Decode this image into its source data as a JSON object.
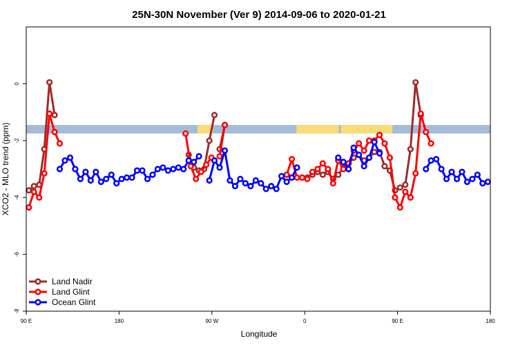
{
  "chart_data": {
    "type": "line",
    "title": "25N-30N November (Ver 9)   2014-09-06 to 2020-01-21",
    "xlabel": "Longitude",
    "ylabel": "XCO2 - MLO trend (ppm)",
    "xlim": [
      0,
      450
    ],
    "ylim": [
      -8,
      2
    ],
    "x_ticks": [
      {
        "value": 0,
        "label": "90 E"
      },
      {
        "value": 90,
        "label": "180"
      },
      {
        "value": 180,
        "label": "90 W"
      },
      {
        "value": 270,
        "label": "0"
      },
      {
        "value": 360,
        "label": "90 E"
      },
      {
        "value": 450,
        "label": "180"
      }
    ],
    "y_ticks": [
      {
        "value": 0,
        "label": "0"
      },
      {
        "value": -2,
        "label": "-2"
      },
      {
        "value": -4,
        "label": "-4"
      },
      {
        "value": -6,
        "label": "-6"
      },
      {
        "value": -8,
        "label": "-8"
      }
    ],
    "grid": false,
    "legend_position": "bottom-left",
    "land_mask_band": {
      "y_range": [
        -1.75,
        -1.45
      ],
      "ocean_color": "#a4bcd8",
      "land_color": "#f8dc78",
      "land_segments": [
        [
          166,
          181
        ],
        [
          262,
          303
        ],
        [
          305,
          355
        ]
      ]
    },
    "series": [
      {
        "name": "Land Nadir",
        "color": "#a02a2a",
        "segments": [
          [
            [
              2.5,
              -3.75
            ],
            [
              7.5,
              -3.6
            ],
            [
              12.5,
              -3.55
            ],
            [
              17.5,
              -2.3
            ],
            [
              22.5,
              0.05
            ],
            [
              27.5,
              -1.1
            ]
          ],
          [
            [
              157.5,
              -2.5
            ],
            [
              162.5,
              -2.95
            ],
            [
              167.5,
              -3.05
            ],
            [
              172.5,
              -3.0
            ],
            [
              177.5,
              -2.0
            ],
            [
              182.5,
              -1.1
            ]
          ],
          [
            [
              187.5,
              -2.3
            ],
            [
              192.5,
              -1.45
            ]
          ],
          [
            [
              267.5,
              -3.3
            ],
            [
              272.5,
              -3.3
            ],
            [
              277.5,
              -3.2
            ],
            [
              282.5,
              -3.1
            ],
            [
              287.5,
              -3.2
            ],
            [
              292.5,
              -3.1
            ],
            [
              297.5,
              -3.35
            ],
            [
              302.5,
              -3.2
            ],
            [
              307.5,
              -2.95
            ],
            [
              312.5,
              -2.8
            ],
            [
              317.5,
              -2.6
            ],
            [
              322.5,
              -2.5
            ],
            [
              327.5,
              -2.7
            ],
            [
              332.5,
              -2.6
            ],
            [
              337.5,
              -2.4
            ],
            [
              342.5,
              -2.4
            ],
            [
              347.5,
              -2.9
            ],
            [
              352.5,
              -3.05
            ],
            [
              357.5,
              -3.75
            ],
            [
              362.5,
              -3.65
            ],
            [
              367.5,
              -3.55
            ],
            [
              372.5,
              -2.3
            ],
            [
              377.5,
              0.05
            ],
            [
              382.5,
              -1.1
            ]
          ]
        ]
      },
      {
        "name": "Land Glint",
        "color": "#ff0000",
        "segments": [
          [
            [
              2.5,
              -4.35
            ],
            [
              7.5,
              -3.8
            ],
            [
              12.5,
              -4.0
            ],
            [
              17.5,
              -3.15
            ],
            [
              22.5,
              -1.05
            ],
            [
              27.5,
              -1.7
            ],
            [
              32.5,
              -2.1
            ]
          ],
          [
            [
              154.5,
              -1.75
            ],
            [
              159.5,
              -2.9
            ],
            [
              164.5,
              -3.35
            ],
            [
              169.5,
              -3.1
            ],
            [
              174.5,
              -2.85
            ],
            [
              179.5,
              -2.6
            ]
          ],
          [
            [
              187.5,
              -2.55
            ],
            [
              192.5,
              -1.45
            ]
          ],
          [
            [
              252.5,
              -3.2
            ],
            [
              257.5,
              -2.65
            ],
            [
              262.5,
              -3.3
            ],
            [
              267.5,
              -3.3
            ],
            [
              272.5,
              -3.35
            ],
            [
              277.5,
              -3.1
            ],
            [
              282.5,
              -3.0
            ],
            [
              287.5,
              -2.8
            ],
            [
              292.5,
              -3.0
            ],
            [
              297.5,
              -3.5
            ],
            [
              302.5,
              -2.7
            ],
            [
              307.5,
              -3.0
            ],
            [
              312.5,
              -2.8
            ],
            [
              317.5,
              -2.35
            ],
            [
              322.5,
              -2.1
            ],
            [
              327.5,
              -2.35
            ],
            [
              332.5,
              -2.0
            ],
            [
              337.5,
              -2.0
            ],
            [
              342.5,
              -1.8
            ],
            [
              347.5,
              -2.1
            ],
            [
              352.5,
              -2.6
            ],
            [
              357.5,
              -4.0
            ],
            [
              362.5,
              -4.35
            ],
            [
              367.5,
              -3.8
            ],
            [
              372.5,
              -4.0
            ],
            [
              377.5,
              -3.15
            ],
            [
              382.5,
              -1.05
            ],
            [
              387.5,
              -1.7
            ],
            [
              392.5,
              -2.1
            ]
          ]
        ]
      },
      {
        "name": "Ocean Glint",
        "color": "#0000ff",
        "segments": [
          [
            [
              32.5,
              -3.0
            ],
            [
              37.5,
              -2.7
            ],
            [
              42.5,
              -2.6
            ],
            [
              47.5,
              -3.0
            ],
            [
              52.5,
              -3.35
            ],
            [
              57.5,
              -3.1
            ],
            [
              62.5,
              -3.4
            ],
            [
              67.5,
              -3.1
            ],
            [
              72.5,
              -3.45
            ],
            [
              77.5,
              -3.35
            ],
            [
              82.5,
              -3.2
            ],
            [
              87.5,
              -3.5
            ],
            [
              92.5,
              -3.35
            ],
            [
              97.5,
              -3.3
            ],
            [
              102.5,
              -3.3
            ],
            [
              107.5,
              -3.05
            ],
            [
              112.5,
              -3.05
            ],
            [
              117.5,
              -3.35
            ],
            [
              122.5,
              -3.2
            ],
            [
              127.5,
              -3.0
            ],
            [
              132.5,
              -2.95
            ],
            [
              137.5,
              -3.05
            ],
            [
              142.5,
              -3.0
            ],
            [
              147.5,
              -2.95
            ],
            [
              152.5,
              -3.0
            ],
            [
              157.5,
              -2.7
            ],
            [
              162.5,
              -2.75
            ],
            [
              167.5,
              -2.55
            ]
          ],
          [
            [
              177.5,
              -3.4
            ],
            [
              182.5,
              -2.7
            ],
            [
              187.5,
              -2.95
            ],
            [
              192.5,
              -2.35
            ],
            [
              197.5,
              -3.4
            ],
            [
              202.5,
              -3.6
            ],
            [
              207.5,
              -3.35
            ],
            [
              212.5,
              -3.5
            ],
            [
              217.5,
              -3.6
            ],
            [
              222.5,
              -3.4
            ],
            [
              227.5,
              -3.5
            ],
            [
              232.5,
              -3.7
            ],
            [
              237.5,
              -3.6
            ],
            [
              242.5,
              -3.7
            ],
            [
              247.5,
              -3.25
            ],
            [
              252.5,
              -3.45
            ],
            [
              257.5,
              -3.3
            ],
            [
              262.5,
              -2.95
            ]
          ],
          [
            [
              302.5,
              -2.6
            ],
            [
              307.5,
              -2.75
            ],
            [
              312.5,
              -3.0
            ],
            [
              317.5,
              -2.25
            ],
            [
              322.5,
              -2.5
            ],
            [
              327.5,
              -2.9
            ],
            [
              332.5,
              -2.6
            ],
            [
              337.5,
              -2.05
            ],
            [
              342.5,
              -2.45
            ]
          ],
          [
            [
              387.5,
              -3.0
            ],
            [
              392.5,
              -2.7
            ],
            [
              397.5,
              -2.65
            ],
            [
              402.5,
              -3.0
            ],
            [
              407.5,
              -3.35
            ],
            [
              412.5,
              -3.1
            ],
            [
              417.5,
              -3.35
            ],
            [
              422.5,
              -3.1
            ],
            [
              427.5,
              -3.45
            ],
            [
              432.5,
              -3.35
            ],
            [
              437.5,
              -3.2
            ],
            [
              442.5,
              -3.5
            ],
            [
              447.5,
              -3.45
            ]
          ]
        ]
      }
    ]
  }
}
